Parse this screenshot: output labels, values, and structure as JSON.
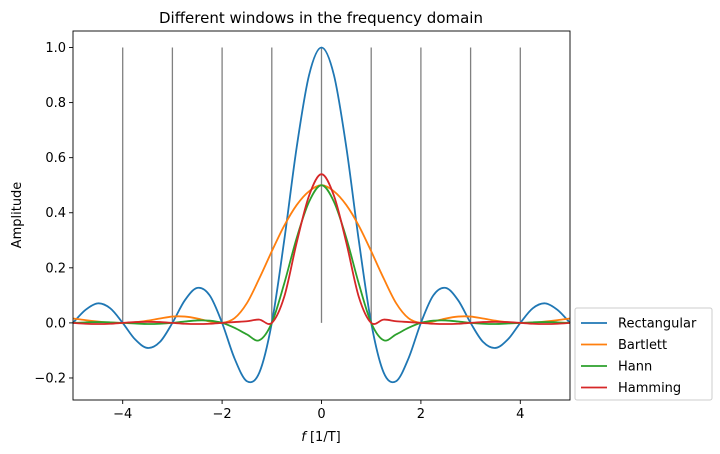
{
  "chart_data": {
    "type": "line",
    "title": "Different windows in the frequency domain",
    "xlabel_var": "f",
    "xlabel_unit": " [1/T]",
    "ylabel": "Amplitude",
    "xlim": [
      -5,
      5
    ],
    "ylim": [
      -0.28,
      1.06
    ],
    "xticks": [
      -4,
      -2,
      0,
      2,
      4
    ],
    "yticks": [
      -0.2,
      0.0,
      0.2,
      0.4,
      0.6,
      0.8,
      1.0
    ],
    "ytick_labels": [
      "−0.2",
      "0.0",
      "0.2",
      "0.4",
      "0.6",
      "0.8",
      "1.0"
    ],
    "xtick_labels": [
      "−4",
      "−2",
      "0",
      "2",
      "4"
    ],
    "grid": false,
    "legend_placement": "outside-lower-right",
    "stems": {
      "x": [
        -4,
        -3,
        -2,
        -1,
        0,
        1,
        2,
        3,
        4
      ],
      "y": [
        1,
        1,
        1,
        1,
        1,
        1,
        1,
        1,
        1
      ],
      "bottom": 0,
      "color": "#808080"
    },
    "series": [
      {
        "name": "Rectangular",
        "color": "#1f77b4",
        "x": [
          -5.0,
          -4.75,
          -4.5,
          -4.25,
          -4.0,
          -3.75,
          -3.5,
          -3.25,
          -3.0,
          -2.75,
          -2.5,
          -2.25,
          -2.0,
          -1.75,
          -1.5,
          -1.25,
          -1.0,
          -0.75,
          -0.5,
          -0.25,
          0.0,
          0.25,
          0.5,
          0.75,
          1.0,
          1.25,
          1.5,
          1.75,
          2.0,
          2.25,
          2.5,
          2.75,
          3.0,
          3.25,
          3.5,
          3.75,
          4.0,
          4.25,
          4.5,
          4.75,
          5.0
        ],
        "y": [
          0.0,
          0.047,
          0.071,
          0.053,
          0.0,
          -0.06,
          -0.091,
          -0.069,
          0.0,
          0.082,
          0.127,
          0.1,
          0.0,
          -0.129,
          -0.212,
          -0.18,
          0.0,
          0.3,
          0.637,
          0.9,
          1.0,
          0.9,
          0.637,
          0.3,
          0.0,
          -0.18,
          -0.212,
          -0.129,
          0.0,
          0.1,
          0.127,
          0.082,
          0.0,
          -0.069,
          -0.091,
          -0.06,
          0.0,
          0.053,
          0.071,
          0.047,
          0.0
        ]
      },
      {
        "name": "Bartlett",
        "color": "#ff7f0e",
        "x": [
          -5.0,
          -4.75,
          -4.5,
          -4.25,
          -4.0,
          -3.75,
          -3.5,
          -3.25,
          -3.0,
          -2.75,
          -2.5,
          -2.25,
          -2.0,
          -1.75,
          -1.5,
          -1.25,
          -1.0,
          -0.75,
          -0.5,
          -0.25,
          0.0,
          0.25,
          0.5,
          0.75,
          1.0,
          1.25,
          1.5,
          1.75,
          2.0,
          2.25,
          2.5,
          2.75,
          3.0,
          3.25,
          3.5,
          3.75,
          4.0,
          4.25,
          4.5,
          4.75,
          5.0
        ],
        "y": [
          0.016,
          0.01,
          0.005,
          0.001,
          0.0,
          0.002,
          0.008,
          0.016,
          0.023,
          0.023,
          0.016,
          0.005,
          0.0,
          0.017,
          0.072,
          0.162,
          0.26,
          0.353,
          0.428,
          0.478,
          0.5,
          0.478,
          0.428,
          0.353,
          0.26,
          0.162,
          0.072,
          0.017,
          0.0,
          0.005,
          0.016,
          0.023,
          0.023,
          0.016,
          0.008,
          0.002,
          0.0,
          0.001,
          0.005,
          0.01,
          0.016
        ]
      },
      {
        "name": "Hann",
        "color": "#2ca02c",
        "x": [
          -5.0,
          -4.75,
          -4.5,
          -4.25,
          -4.0,
          -3.75,
          -3.5,
          -3.25,
          -3.0,
          -2.75,
          -2.5,
          -2.25,
          -2.0,
          -1.75,
          -1.5,
          -1.25,
          -1.0,
          -0.75,
          -0.5,
          -0.25,
          0.0,
          0.25,
          0.5,
          0.75,
          1.0,
          1.25,
          1.5,
          1.75,
          2.0,
          2.25,
          2.5,
          2.75,
          3.0,
          3.25,
          3.5,
          3.75,
          4.0,
          4.25,
          4.5,
          4.75,
          5.0
        ],
        "y": [
          0.0,
          0.002,
          0.003,
          0.002,
          0.0,
          -0.002,
          -0.004,
          -0.003,
          0.0,
          0.005,
          0.009,
          0.008,
          0.0,
          -0.018,
          -0.042,
          -0.063,
          0.0,
          0.143,
          0.308,
          0.44,
          0.5,
          0.44,
          0.308,
          0.143,
          0.0,
          -0.063,
          -0.042,
          -0.018,
          0.0,
          0.008,
          0.009,
          0.005,
          0.0,
          -0.003,
          -0.004,
          -0.002,
          0.0,
          0.002,
          0.003,
          0.002,
          0.0
        ]
      },
      {
        "name": "Hamming",
        "color": "#d62728",
        "x": [
          -5.0,
          -4.75,
          -4.5,
          -4.25,
          -4.0,
          -3.75,
          -3.5,
          -3.25,
          -3.0,
          -2.75,
          -2.5,
          -2.25,
          -2.0,
          -1.75,
          -1.5,
          -1.25,
          -1.0,
          -0.75,
          -0.5,
          -0.25,
          0.0,
          0.25,
          0.5,
          0.75,
          1.0,
          1.25,
          1.5,
          1.75,
          2.0,
          2.25,
          2.5,
          2.75,
          3.0,
          3.25,
          3.5,
          3.75,
          4.0,
          4.25,
          4.5,
          4.75,
          5.0
        ],
        "y": [
          0.0,
          -0.003,
          -0.004,
          -0.003,
          0.0,
          0.003,
          0.004,
          0.003,
          0.0,
          -0.003,
          -0.004,
          -0.003,
          0.0,
          0.003,
          0.006,
          0.012,
          0.0,
          0.095,
          0.291,
          0.462,
          0.54,
          0.462,
          0.291,
          0.095,
          0.0,
          0.012,
          0.006,
          0.003,
          0.0,
          -0.003,
          -0.004,
          -0.003,
          0.0,
          0.003,
          0.004,
          0.003,
          0.0,
          -0.003,
          -0.004,
          -0.003,
          0.0
        ]
      }
    ]
  }
}
